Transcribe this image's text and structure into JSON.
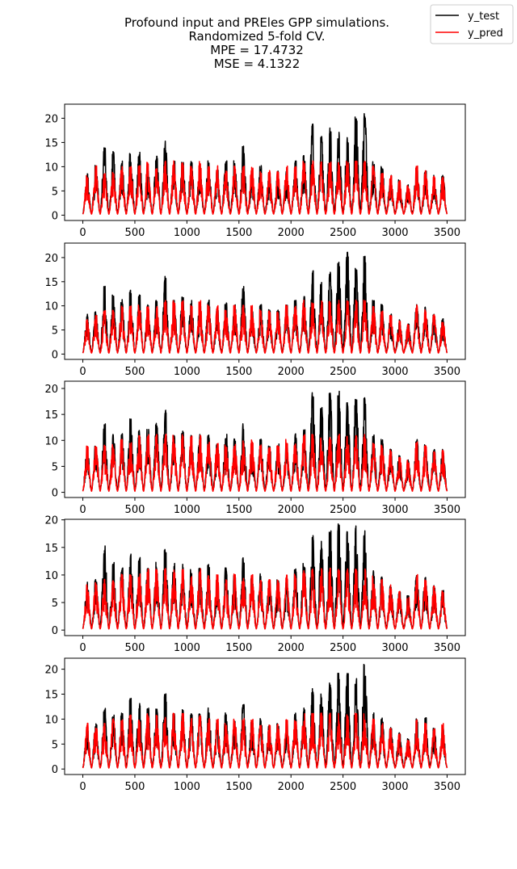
{
  "figure": {
    "title_lines": [
      "Profound input and PREles GPP simulations.",
      "Randomized 5-fold CV.",
      "MPE = 17.4732",
      "MSE = 4.1322"
    ]
  },
  "legend": {
    "placement": "top-right",
    "entries": [
      {
        "label": "y_test",
        "color": "#000000"
      },
      {
        "label": "y_pred",
        "color": "#ff0000"
      }
    ]
  },
  "chart_data": {
    "type": "line",
    "title": "Profound input and PREles GPP simulations.\nRandomized 5-fold CV.\nMPE = 17.4732\nMSE = 4.1322",
    "xlabel": "",
    "ylabel": "",
    "grid": false,
    "series_styles": [
      {
        "name": "y_test",
        "color": "#000000"
      },
      {
        "name": "y_pred",
        "color": "#ff0000"
      }
    ],
    "panels": [
      {
        "xlim": [
          -175,
          3675
        ],
        "ylim": [
          -1.1,
          22.9
        ],
        "xticks": [
          0,
          500,
          1000,
          1500,
          2000,
          2500,
          3000,
          3500
        ],
        "yticks": [
          0,
          5,
          10,
          15,
          20
        ],
        "n_points": 3500,
        "series": [
          {
            "name": "y_test",
            "color": "#000000",
            "season_peaks": [
              8.5,
              10,
              14,
              13,
              11,
              13,
              13,
              9,
              12,
              15,
              11,
              11,
              11,
              10,
              11,
              9,
              11,
              11,
              14,
              9,
              10,
              8,
              9,
              9,
              11,
              12,
              19,
              16,
              18,
              17,
              16,
              20,
              21,
              11,
              10,
              8,
              7,
              6,
              10,
              9,
              8,
              8
            ],
            "season_floor": 0.3
          },
          {
            "name": "y_pred",
            "color": "#ff0000",
            "season_peaks": [
              8,
              10,
              9,
              9,
              10,
              10,
              10,
              11,
              10,
              11,
              11,
              11,
              10,
              11,
              10,
              10,
              9,
              10,
              10,
              10,
              9,
              9,
              9,
              10,
              10,
              11,
              11,
              11,
              11,
              11,
              11,
              11,
              11,
              10,
              9,
              8,
              7,
              6,
              10,
              9,
              8,
              8
            ],
            "season_floor": 0.2
          }
        ]
      },
      {
        "xlim": [
          -175,
          3675
        ],
        "ylim": [
          -1.1,
          23.0
        ],
        "xticks": [
          0,
          500,
          1000,
          1500,
          2000,
          2500,
          3000,
          3500
        ],
        "yticks": [
          0,
          5,
          10,
          15,
          20
        ],
        "n_points": 3500,
        "series": [
          {
            "name": "y_test",
            "color": "#000000",
            "season_peaks": [
              8,
              9,
              14,
              12,
              11,
              13,
              12,
              10,
              11,
              16,
              11,
              12,
              11,
              10,
              11,
              9,
              11,
              10,
              14,
              9,
              10,
              9,
              9,
              10,
              11,
              12,
              17,
              15,
              17,
              19,
              22,
              18,
              20,
              11,
              10,
              8,
              7,
              6,
              10,
              10,
              8,
              7
            ],
            "season_floor": 0.3
          },
          {
            "name": "y_pred",
            "color": "#ff0000",
            "season_peaks": [
              7,
              8,
              9,
              9,
              10,
              10,
              10,
              10,
              10,
              11,
              11,
              11,
              10,
              11,
              10,
              10,
              9,
              10,
              10,
              10,
              9,
              9,
              9,
              10,
              10,
              11,
              11,
              11,
              11,
              11,
              11,
              11,
              11,
              10,
              9,
              8,
              7,
              6,
              10,
              9,
              8,
              7
            ],
            "season_floor": 0.2
          }
        ]
      },
      {
        "xlim": [
          -175,
          3675
        ],
        "ylim": [
          -1.0,
          21.4
        ],
        "xticks": [
          0,
          500,
          1000,
          1500,
          2000,
          2500,
          3000,
          3500
        ],
        "yticks": [
          0,
          5,
          10,
          15,
          20
        ],
        "n_points": 3500,
        "series": [
          {
            "name": "y_test",
            "color": "#000000",
            "season_peaks": [
              8.5,
              9,
              13,
              11,
              11,
              14,
              12,
              12,
              13,
              16,
              11,
              12,
              11,
              11,
              11,
              9,
              11,
              10,
              13,
              9,
              10,
              9,
              9,
              9,
              11,
              12,
              19,
              17,
              19,
              20,
              18,
              19,
              18,
              11,
              10,
              8,
              7,
              6,
              10,
              9,
              8,
              8
            ],
            "season_floor": 0.3
          },
          {
            "name": "y_pred",
            "color": "#ff0000",
            "season_peaks": [
              9,
              9,
              9,
              9,
              10,
              10,
              11,
              11,
              11,
              11,
              11,
              11,
              11,
              11,
              10,
              10,
              9,
              10,
              10,
              10,
              9,
              9,
              9,
              10,
              10,
              11,
              11,
              11,
              11,
              11,
              11,
              11,
              11,
              10,
              9,
              8,
              7,
              6,
              10,
              9,
              8,
              8
            ],
            "season_floor": 0.2
          }
        ]
      },
      {
        "xlim": [
          -175,
          3675
        ],
        "ylim": [
          -1.0,
          20.1
        ],
        "xticks": [
          0,
          500,
          1000,
          1500,
          2000,
          2500,
          3000,
          3500
        ],
        "yticks": [
          0,
          5,
          10,
          15,
          20
        ],
        "n_points": 3500,
        "series": [
          {
            "name": "y_test",
            "color": "#000000",
            "season_peaks": [
              8.5,
              9,
              15,
              12,
              11,
              14,
              13,
              11,
              12,
              15,
              12,
              12,
              11,
              11,
              12,
              9,
              11,
              10,
              13,
              9,
              10,
              9,
              9,
              9,
              11,
              12,
              17,
              16,
              18,
              19,
              18,
              19,
              18,
              11,
              10,
              8,
              7,
              6,
              10,
              10,
              8,
              7
            ],
            "season_floor": 0.3
          },
          {
            "name": "y_pred",
            "color": "#ff0000",
            "season_peaks": [
              8.5,
              9,
              9,
              9,
              10,
              10,
              10,
              11,
              11,
              11,
              11,
              11,
              10,
              11,
              10,
              10,
              9,
              10,
              10,
              10,
              9,
              9,
              9,
              10,
              10,
              11,
              11,
              11,
              11,
              11,
              11,
              11,
              11,
              10,
              9,
              8,
              7,
              6,
              10,
              9,
              8,
              7
            ],
            "season_floor": 0.2
          }
        ]
      },
      {
        "xlim": [
          -175,
          3675
        ],
        "ylim": [
          -1.1,
          22.2
        ],
        "xticks": [
          0,
          500,
          1000,
          1500,
          2000,
          2500,
          3000,
          3500
        ],
        "yticks": [
          0,
          5,
          10,
          15,
          20
        ],
        "n_points": 3500,
        "series": [
          {
            "name": "y_test",
            "color": "#000000",
            "season_peaks": [
              8,
              9,
              12,
              11,
              11,
              14,
              13,
              12,
              12,
              15,
              11,
              12,
              11,
              11,
              12,
              9,
              11,
              10,
              13,
              9,
              10,
              9,
              9,
              9,
              11,
              12,
              16,
              15,
              17,
              19,
              19,
              18,
              21,
              11,
              10,
              8,
              7,
              6,
              10,
              10,
              8,
              8
            ],
            "season_floor": 0.3
          },
          {
            "name": "y_pred",
            "color": "#ff0000",
            "season_peaks": [
              9,
              9,
              9,
              10,
              10,
              11,
              10,
              11,
              11,
              11,
              11,
              11,
              10,
              11,
              10,
              10,
              9,
              10,
              10,
              10,
              9,
              9,
              9,
              10,
              10,
              11,
              11,
              11,
              11,
              11,
              11,
              11,
              11,
              10,
              9,
              8,
              7,
              6,
              10,
              9,
              8,
              9
            ],
            "season_floor": 0.2
          }
        ]
      }
    ]
  }
}
